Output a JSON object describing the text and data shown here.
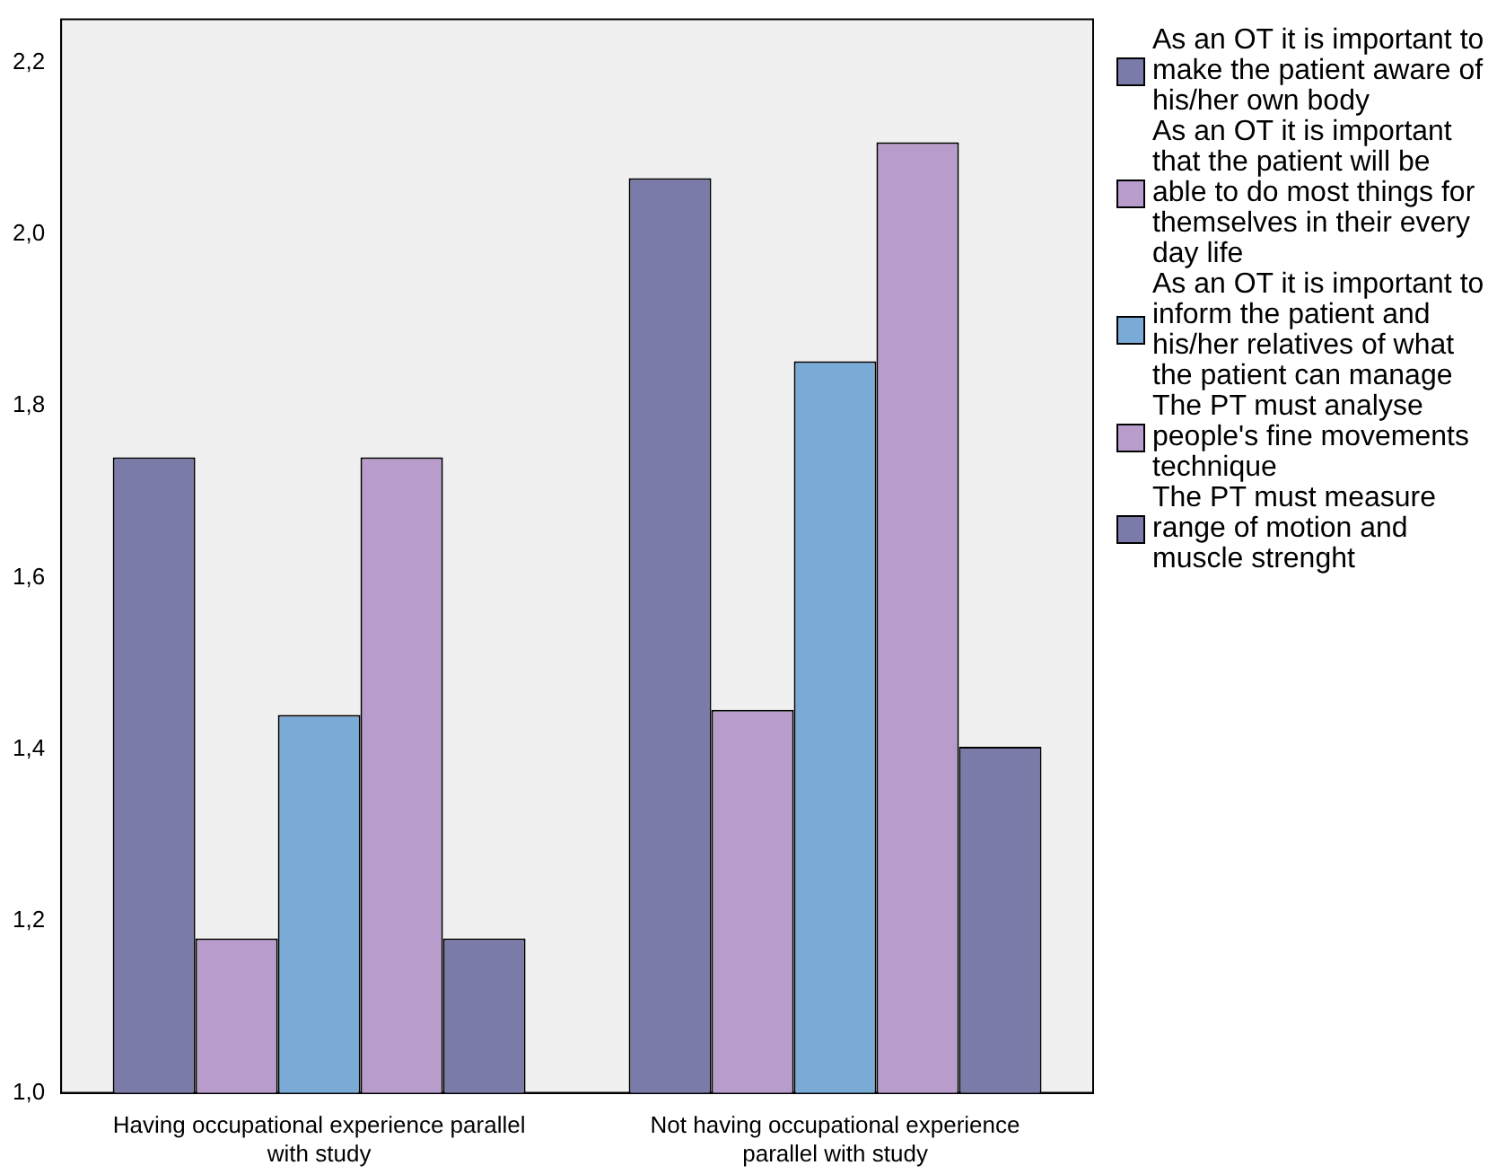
{
  "chart_data": {
    "type": "bar",
    "categories": [
      "Having occupational experience parallel with study",
      "Not having occupational experience parallel with study"
    ],
    "series": [
      {
        "name": "As an OT it is important to make the patient aware of his/her own body",
        "color": "#7b7baa",
        "values": [
          1.74,
          2.065
        ]
      },
      {
        "name": "As an OT it is important that the patient will be able to do most things for themselves in their every day life",
        "color": "#b89ccb",
        "values": [
          1.18,
          1.446
        ]
      },
      {
        "name": "As an OT it is important to inform the patient and his/her relatives of what the patient can manage",
        "color": "#7aaad6",
        "values": [
          1.44,
          1.852
        ]
      },
      {
        "name": "The PT must analyse people's fine movements technique",
        "color": "#b89ccb",
        "values": [
          1.74,
          2.107
        ]
      },
      {
        "name": "The PT must measure range of motion and muscle strenght",
        "color": "#7b7baa",
        "values": [
          1.18,
          1.403
        ]
      }
    ],
    "ylim": [
      1.0,
      2.25
    ],
    "yticks": [
      {
        "value": 1.0,
        "label": "1,0"
      },
      {
        "value": 1.2,
        "label": "1,2"
      },
      {
        "value": 1.4,
        "label": "1,4"
      },
      {
        "value": 1.6,
        "label": "1,6"
      },
      {
        "value": 1.8,
        "label": "1,8"
      },
      {
        "value": 2.0,
        "label": "2,0"
      },
      {
        "value": 2.2,
        "label": "2,2"
      }
    ],
    "grid": false,
    "legend": "right"
  }
}
